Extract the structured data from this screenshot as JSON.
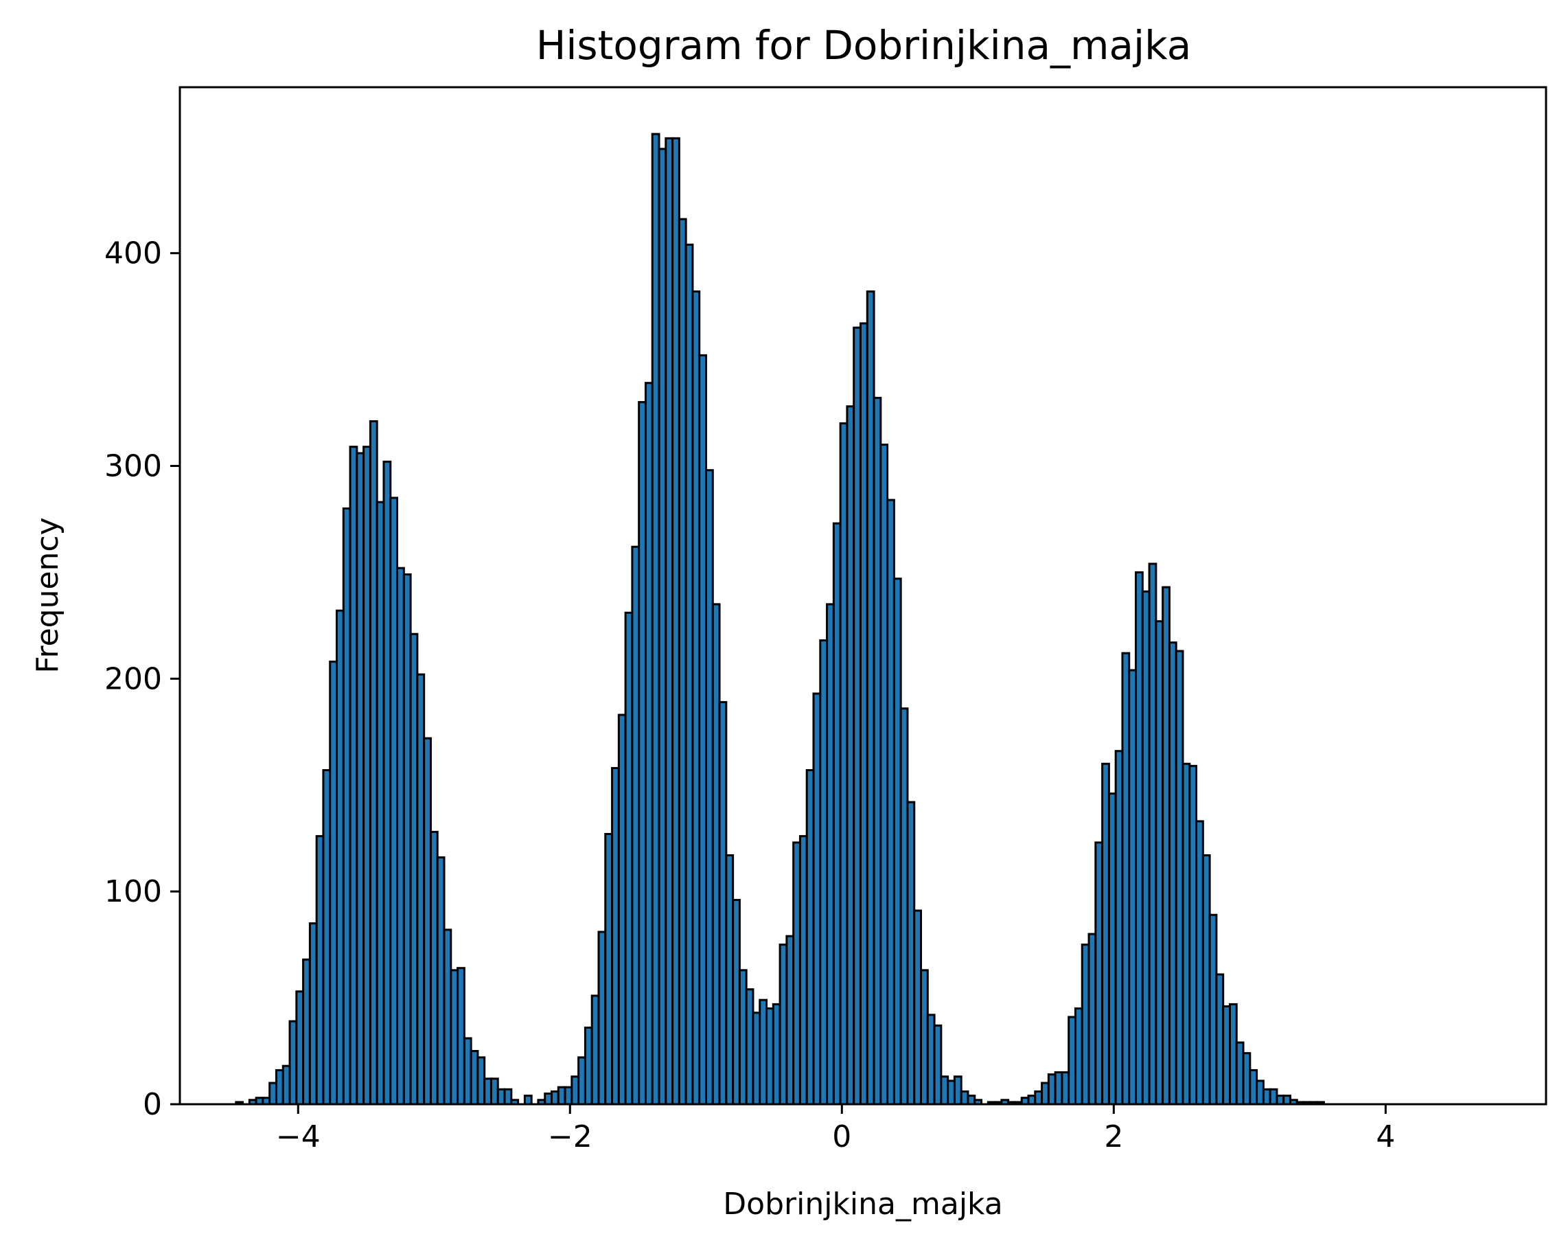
{
  "chart_data": {
    "type": "bar",
    "title": "Histogram for Dobrinjkina_majka",
    "xlabel": "Dobrinjkina_majka",
    "ylabel": "Frequency",
    "xlim": [
      -4.87,
      5.18
    ],
    "ylim": [
      0,
      478
    ],
    "x_ticks": [
      {
        "value": -4,
        "label": "−4"
      },
      {
        "value": -2,
        "label": "−2"
      },
      {
        "value": 0,
        "label": "0"
      },
      {
        "value": 2,
        "label": "2"
      },
      {
        "value": 4,
        "label": "4"
      }
    ],
    "y_ticks": [
      {
        "value": 0,
        "label": "0"
      },
      {
        "value": 100,
        "label": "100"
      },
      {
        "value": 200,
        "label": "200"
      },
      {
        "value": 300,
        "label": "300"
      },
      {
        "value": 400,
        "label": "400"
      }
    ],
    "bin_start": -4.457,
    "bin_width": 0.0494,
    "values": [
      1,
      0,
      2,
      3,
      3,
      10,
      16,
      18,
      39,
      53,
      68,
      85,
      126,
      157,
      208,
      232,
      280,
      309,
      306,
      309,
      321,
      283,
      302,
      285,
      252,
      249,
      221,
      202,
      172,
      128,
      116,
      82,
      63,
      64,
      31,
      25,
      22,
      12,
      12,
      7,
      7,
      2,
      0,
      4,
      0,
      2,
      5,
      6,
      8,
      8,
      13,
      22,
      36,
      51,
      81,
      127,
      158,
      183,
      231,
      262,
      330,
      339,
      456,
      449,
      454,
      454,
      416,
      404,
      382,
      352,
      298,
      235,
      189,
      117,
      96,
      63,
      54,
      43,
      49,
      45,
      47,
      75,
      79,
      123,
      126,
      157,
      193,
      218,
      235,
      273,
      320,
      328,
      365,
      367,
      382,
      332,
      310,
      284,
      247,
      186,
      142,
      91,
      63,
      42,
      37,
      13,
      11,
      13,
      6,
      4,
      2,
      0,
      1,
      1,
      2,
      1,
      1,
      3,
      4,
      6,
      10,
      14,
      15,
      15,
      41,
      45,
      75,
      80,
      123,
      160,
      146,
      166,
      212,
      204,
      250,
      241,
      254,
      227,
      243,
      217,
      213,
      160,
      159,
      133,
      117,
      89,
      61,
      46,
      47,
      29,
      24,
      16,
      11,
      7,
      7,
      4,
      4,
      2,
      1,
      1,
      1,
      1
    ],
    "bar_color": "#1f77b4",
    "edge_color": "#000000",
    "grid": false,
    "legend": "none"
  }
}
